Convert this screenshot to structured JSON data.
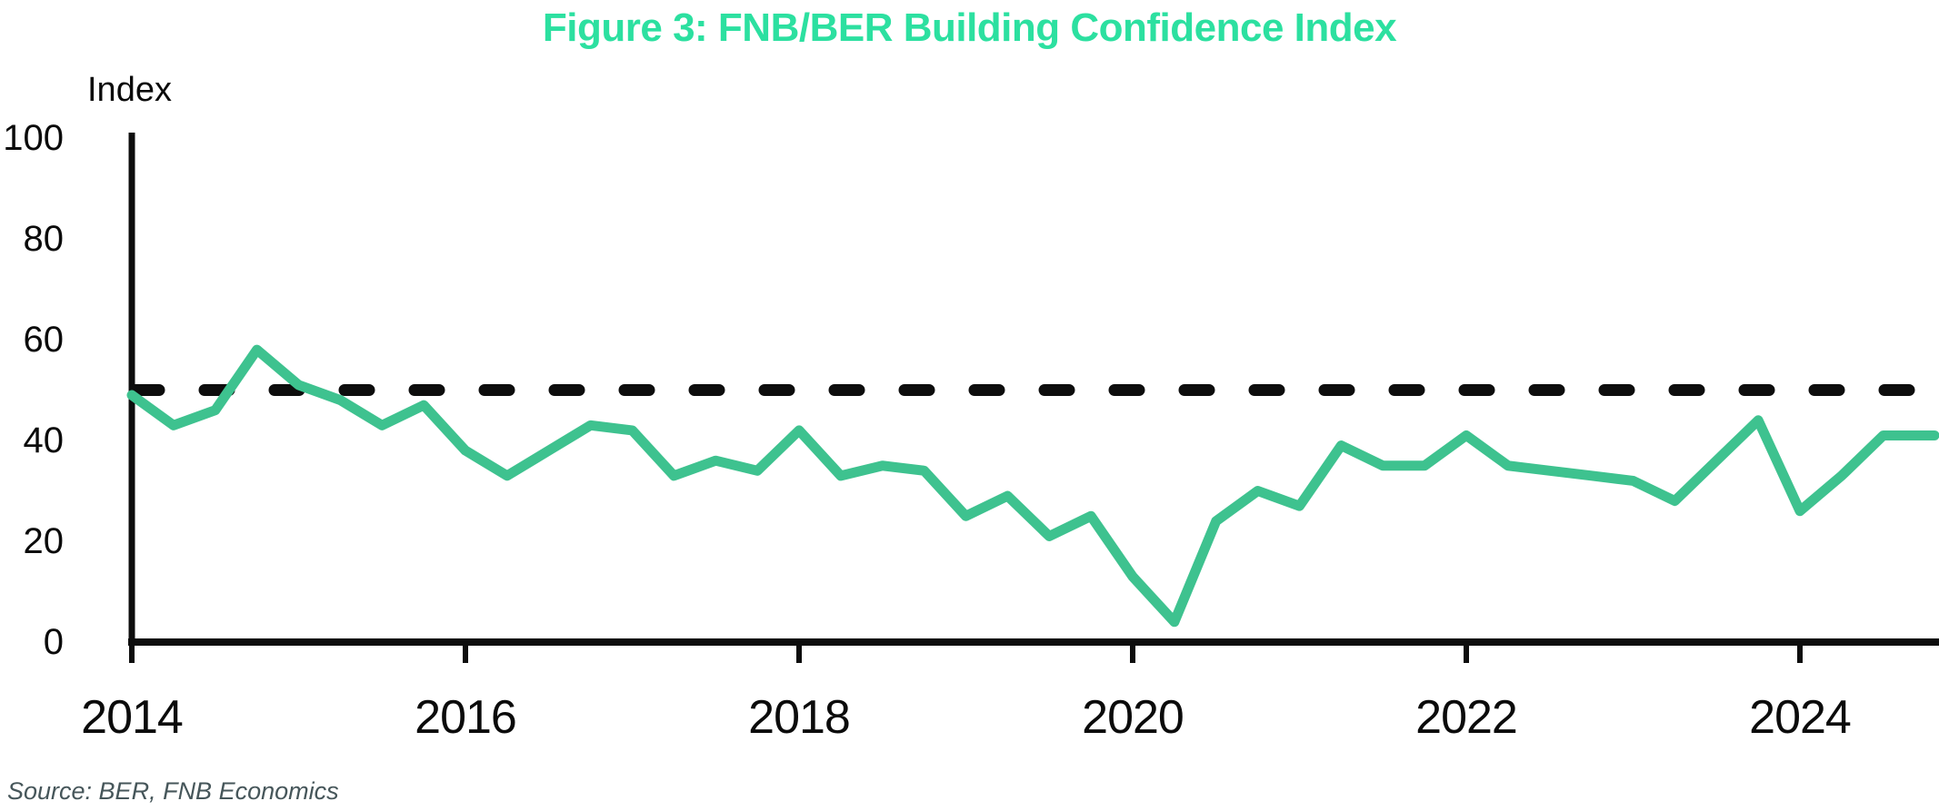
{
  "title": {
    "text": "Figure 3: FNB/BER Building Confidence Index",
    "color": "#2ce0a0"
  },
  "y_axis": {
    "label": "Index",
    "ticks": [
      100,
      80,
      60,
      40,
      20,
      0
    ]
  },
  "x_axis": {
    "ticks": [
      "2014",
      "2016",
      "2018",
      "2020",
      "2022",
      "2024"
    ]
  },
  "source": {
    "text": "Source: BER, FNB Economics"
  },
  "chart_data": {
    "type": "line",
    "title": "Figure 3: FNB/BER Building Confidence Index",
    "xlabel": "",
    "ylabel": "Index",
    "ylim": [
      0,
      100
    ],
    "y_ticks": [
      0,
      20,
      40,
      60,
      80,
      100
    ],
    "x_tick_years": [
      2014,
      2016,
      2018,
      2020,
      2022,
      2024
    ],
    "frequency": "quarterly",
    "grid": false,
    "legend_position": "none",
    "benchmark_line": {
      "value": 50,
      "style": "dashed",
      "color": "#0d0d0d"
    },
    "axis_color": "#0d0d0d",
    "series": [
      {
        "name": "FNB/BER Building Confidence Index",
        "color": "#3ec28f",
        "x": [
          "2014Q1",
          "2014Q2",
          "2014Q3",
          "2014Q4",
          "2015Q1",
          "2015Q2",
          "2015Q3",
          "2015Q4",
          "2016Q1",
          "2016Q2",
          "2016Q3",
          "2016Q4",
          "2017Q1",
          "2017Q2",
          "2017Q3",
          "2017Q4",
          "2018Q1",
          "2018Q2",
          "2018Q3",
          "2018Q4",
          "2019Q1",
          "2019Q2",
          "2019Q3",
          "2019Q4",
          "2020Q1",
          "2020Q2",
          "2020Q3",
          "2020Q4",
          "2021Q1",
          "2021Q2",
          "2021Q3",
          "2021Q4",
          "2022Q1",
          "2022Q2",
          "2022Q3",
          "2022Q4",
          "2023Q1",
          "2023Q2",
          "2023Q3",
          "2023Q4",
          "2024Q1",
          "2024Q2",
          "2024Q3",
          "2024Q4"
        ],
        "values": [
          49,
          43,
          46,
          58,
          51,
          48,
          43,
          47,
          38,
          33,
          38,
          43,
          42,
          33,
          36,
          34,
          42,
          33,
          35,
          34,
          25,
          29,
          21,
          25,
          13,
          4,
          24,
          30,
          27,
          39,
          35,
          35,
          41,
          35,
          34,
          33,
          32,
          28,
          36,
          44,
          26,
          33,
          41,
          41
        ]
      }
    ],
    "source": "Source: BER, FNB Economics"
  }
}
